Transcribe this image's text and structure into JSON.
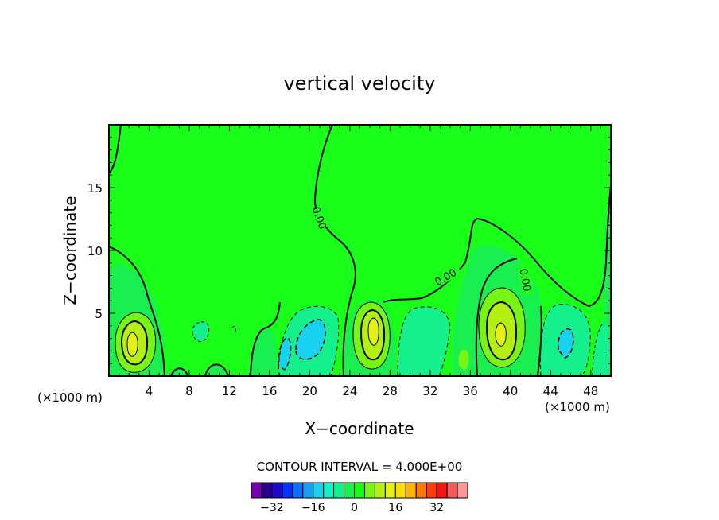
{
  "chart_data": {
    "type": "contour",
    "title": "vertical velocity",
    "xlabel": "X−coordinate",
    "ylabel": "Z−coordinate",
    "x_unit_left": "(×1000 m)",
    "x_unit_right": "(×1000 m)",
    "x_ticks": [
      "4",
      "8",
      "12",
      "16",
      "20",
      "24",
      "28",
      "32",
      "36",
      "40",
      "44",
      "48"
    ],
    "x_tick_values": [
      4,
      8,
      12,
      16,
      20,
      24,
      28,
      32,
      36,
      40,
      44,
      48
    ],
    "y_ticks": [
      "5",
      "10",
      "15"
    ],
    "y_tick_values": [
      5,
      10,
      15
    ],
    "xlim": [
      0,
      50
    ],
    "ylim": [
      0,
      20
    ],
    "contour_interval_text": "CONTOUR INTERVAL = 4.000E+00",
    "contour_labels": [
      "0.00",
      "0.00",
      "0.00"
    ],
    "colorbar": {
      "colors": [
        "#7a00b4",
        "#28008c",
        "#1e0ac8",
        "#0032ff",
        "#0a6eff",
        "#14a0f5",
        "#19d2f0",
        "#14f0c8",
        "#14f08c",
        "#19f050",
        "#14ff14",
        "#78f514",
        "#b4f014",
        "#e6f014",
        "#fadc0a",
        "#ffb400",
        "#ff7800",
        "#ff3c00",
        "#f51414",
        "#f55a5a",
        "#ff9696"
      ],
      "tick_labels": [
        "−32",
        "−16",
        "0",
        "16",
        "32"
      ]
    },
    "cells": [
      {
        "x": 2.5,
        "z": 2.5,
        "level": 20
      },
      {
        "x": 26.5,
        "z": 3.5,
        "level": 20
      },
      {
        "x": 39.5,
        "z": 3.5,
        "level": 20
      },
      {
        "x": 19.5,
        "z": 2.8,
        "level": -16
      },
      {
        "x": 17.5,
        "z": 1.5,
        "level": -12
      },
      {
        "x": 45.5,
        "z": 2.5,
        "level": -12
      },
      {
        "x": 31.5,
        "z": 2.5,
        "level": -8
      },
      {
        "x": 34.5,
        "z": 1.5,
        "level": 8
      }
    ]
  }
}
